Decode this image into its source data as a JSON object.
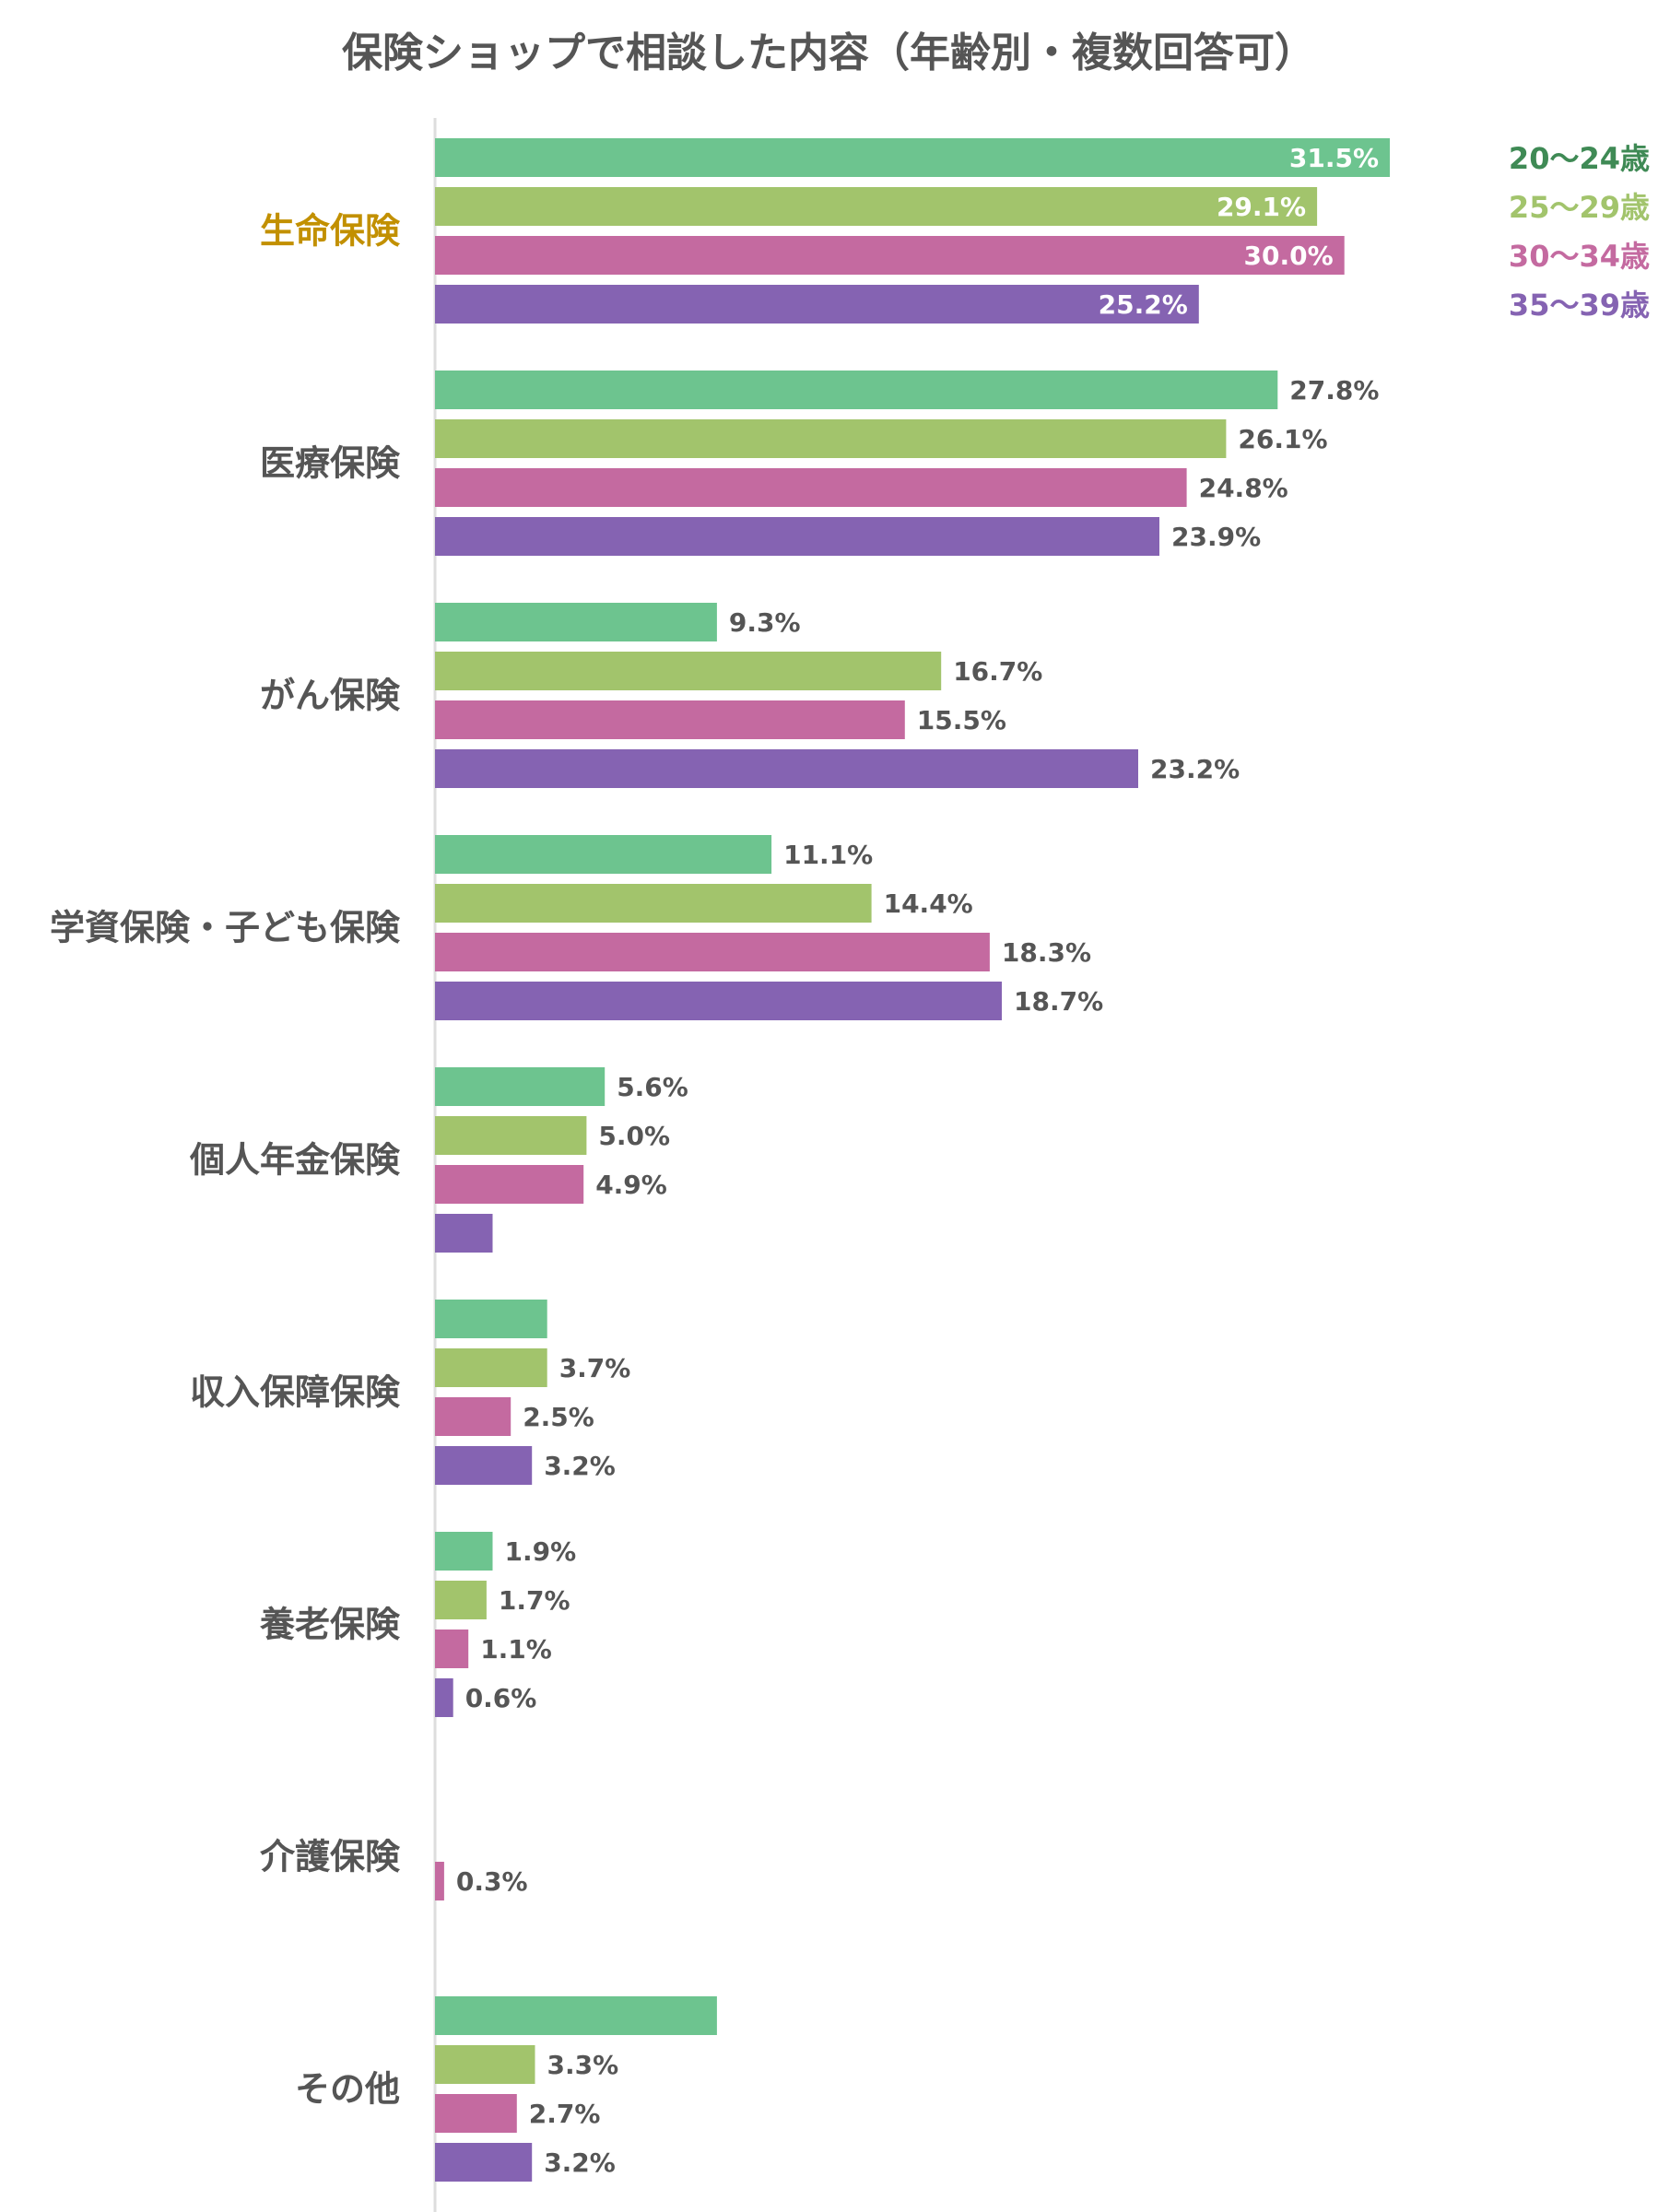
{
  "chart_data": {
    "type": "bar",
    "orientation": "horizontal",
    "title": "保険ショップで相談した内容（年齢別・複数回答可）",
    "categories": [
      "生命保険",
      "医療保険",
      "がん保険",
      "学資保険・子ども保険",
      "個人年金保険",
      "収入保障保険",
      "養老保険",
      "介護保険",
      "その他"
    ],
    "highlight_category": "生命保険",
    "highlight_color": "#c29000",
    "series": [
      {
        "name": "20～24歳",
        "color": "#6dc48f",
        "values": [
          31.5,
          27.8,
          9.3,
          11.1,
          5.6,
          3.7,
          1.9,
          0,
          9.3
        ],
        "labels": [
          "31.5%",
          "27.8%",
          "9.3%",
          "11.1%",
          "5.6%",
          "",
          "1.9%",
          "",
          ""
        ]
      },
      {
        "name": "25～29歳",
        "color": "#a2c46c",
        "values": [
          29.1,
          26.1,
          16.7,
          14.4,
          5.0,
          3.7,
          1.7,
          0,
          3.3
        ],
        "labels": [
          "29.1%",
          "26.1%",
          "16.7%",
          "14.4%",
          "5.0%",
          "3.7%",
          "1.7%",
          "",
          "3.3%"
        ]
      },
      {
        "name": "30～34歳",
        "color": "#c46aa0",
        "values": [
          30.0,
          24.8,
          15.5,
          18.3,
          4.9,
          2.5,
          1.1,
          0.3,
          2.7
        ],
        "labels": [
          "30.0%",
          "24.8%",
          "15.5%",
          "18.3%",
          "4.9%",
          "2.5%",
          "1.1%",
          "0.3%",
          "2.7%"
        ]
      },
      {
        "name": "35～39歳",
        "color": "#8563b2",
        "values": [
          25.2,
          23.9,
          23.2,
          18.7,
          1.9,
          3.2,
          0.6,
          0,
          3.2
        ],
        "labels": [
          "25.2%",
          "23.9%",
          "23.2%",
          "18.7%",
          "",
          "3.2%",
          "0.6%",
          "",
          "3.2%"
        ]
      }
    ],
    "legend_colors": [
      "#3f8a55",
      "#a2c46c",
      "#c46aa0",
      "#8563b2"
    ],
    "inside_label_categories": [
      "生命保険"
    ],
    "xlim": [
      0,
      35
    ],
    "legend_position": "top-right",
    "grid": false
  }
}
